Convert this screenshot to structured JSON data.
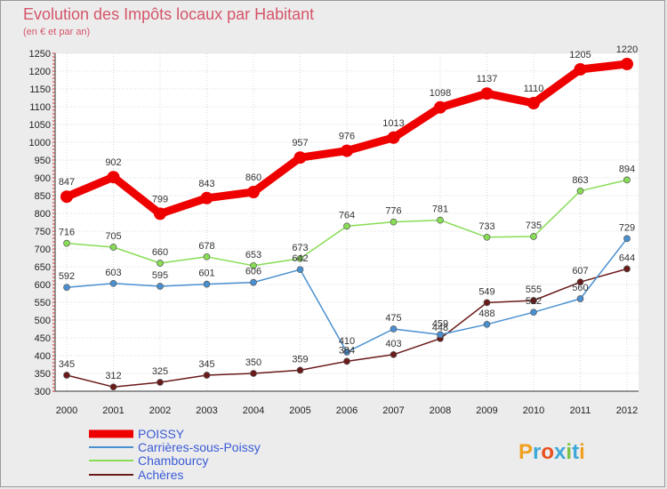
{
  "chart_data": {
    "type": "line",
    "title": "Evolution des Impôts locaux par Habitant",
    "subtitle": "(en € et par an)",
    "x": [
      "2000",
      "2001",
      "2002",
      "2003",
      "2004",
      "2005",
      "2006",
      "2007",
      "2008",
      "2009",
      "2010",
      "2011",
      "2012"
    ],
    "ylim": [
      300,
      1250
    ],
    "yticks": [
      300,
      350,
      400,
      450,
      500,
      550,
      600,
      650,
      700,
      750,
      800,
      850,
      900,
      950,
      1000,
      1050,
      1100,
      1150,
      1200,
      1250
    ],
    "grid": true,
    "legend_position": "bottom-left",
    "series": [
      {
        "name": "POISSY",
        "color": "#ee0000",
        "values": [
          847,
          902,
          799,
          843,
          860,
          957,
          976,
          1013,
          1098,
          1137,
          1110,
          1205,
          1220
        ]
      },
      {
        "name": "Carrières-sous-Poissy",
        "color": "#4a90d0",
        "values": [
          592,
          603,
          595,
          601,
          606,
          642,
          410,
          475,
          459,
          488,
          522,
          560,
          729
        ]
      },
      {
        "name": "Chambourcy",
        "color": "#88dd55",
        "values": [
          716,
          705,
          660,
          678,
          653,
          673,
          764,
          776,
          781,
          733,
          735,
          863,
          894
        ]
      },
      {
        "name": "Achères",
        "color": "#6b1a1a",
        "values": [
          345,
          312,
          325,
          345,
          350,
          359,
          384,
          403,
          448,
          549,
          555,
          607,
          644
        ]
      }
    ],
    "data_labels": [
      [
        "847",
        "902",
        "799",
        "843",
        "860",
        "957",
        "976",
        "1013",
        "1098",
        "1137",
        "1110",
        "1205",
        "1220"
      ],
      [
        "592",
        "603",
        "595",
        "601",
        "606",
        "642",
        "410",
        "475",
        "459",
        "488",
        "522",
        "560",
        "729"
      ],
      [
        "716",
        "705",
        "660",
        "678",
        "653",
        "673",
        "764",
        "776",
        "781",
        "733",
        "735",
        "863",
        "894"
      ],
      [
        "345",
        "312",
        "325",
        "345",
        "350",
        "359",
        "384",
        "403",
        "448",
        "549",
        "555",
        "607",
        "644"
      ]
    ]
  },
  "logo": {
    "text": "Proxiti",
    "colors": [
      "#f0a020",
      "#3ea8d8",
      "#e8501e",
      "#3ea8d8",
      "#7ac043",
      "#3ea8d8",
      "#f0a020"
    ]
  }
}
